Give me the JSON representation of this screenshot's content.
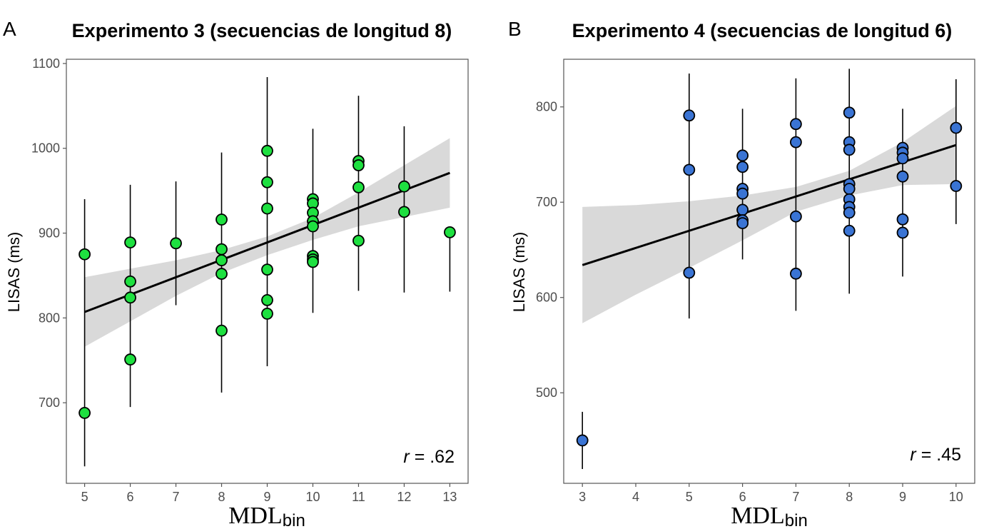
{
  "chart_data": [
    {
      "type": "scatter",
      "panel_letter": "A",
      "title": "Experimento 3 (secuencias de longitud 8)",
      "xlabel": "MDL",
      "xlabel_sub": "bin",
      "ylabel": "LISAS (ms)",
      "xlim": [
        4.6,
        13.4
      ],
      "ylim": [
        605,
        1105
      ],
      "xticks": [
        5,
        6,
        7,
        8,
        9,
        10,
        11,
        12,
        13
      ],
      "yticks": [
        700,
        800,
        900,
        1000,
        1100
      ],
      "point_color": "#1ee040",
      "annotation": {
        "r_label": "r",
        "r_value": " = .62"
      },
      "regression": {
        "x": [
          5,
          13
        ],
        "y": [
          807,
          971
        ]
      },
      "confidence_band": {
        "x": [
          5,
          6,
          7,
          8,
          9,
          10,
          11,
          12,
          13
        ],
        "upper": [
          848,
          858,
          868,
          880,
          896,
          918,
          948,
          980,
          1012
        ],
        "lower": [
          766,
          796,
          826,
          853,
          874,
          892,
          908,
          919,
          930
        ]
      },
      "error_bars": [
        {
          "x": 5,
          "low": 625,
          "high": 940
        },
        {
          "x": 6,
          "low": 695,
          "high": 957
        },
        {
          "x": 7,
          "low": 815,
          "high": 961
        },
        {
          "x": 8,
          "low": 712,
          "high": 995
        },
        {
          "x": 9,
          "low": 743,
          "high": 1084
        },
        {
          "x": 10,
          "low": 806,
          "high": 1023
        },
        {
          "x": 11,
          "low": 832,
          "high": 1062
        },
        {
          "x": 12,
          "low": 830,
          "high": 1026
        },
        {
          "x": 13,
          "low": 831,
          "high": 901
        }
      ],
      "points": [
        {
          "x": 5,
          "y": 875
        },
        {
          "x": 5,
          "y": 688
        },
        {
          "x": 6,
          "y": 889
        },
        {
          "x": 6,
          "y": 843
        },
        {
          "x": 6,
          "y": 824
        },
        {
          "x": 6,
          "y": 751
        },
        {
          "x": 7,
          "y": 888
        },
        {
          "x": 8,
          "y": 916
        },
        {
          "x": 8,
          "y": 881
        },
        {
          "x": 8,
          "y": 868
        },
        {
          "x": 8,
          "y": 852
        },
        {
          "x": 8,
          "y": 785
        },
        {
          "x": 9,
          "y": 997
        },
        {
          "x": 9,
          "y": 960
        },
        {
          "x": 9,
          "y": 929
        },
        {
          "x": 9,
          "y": 857
        },
        {
          "x": 9,
          "y": 821
        },
        {
          "x": 9,
          "y": 805
        },
        {
          "x": 10,
          "y": 940
        },
        {
          "x": 10,
          "y": 935
        },
        {
          "x": 10,
          "y": 924
        },
        {
          "x": 10,
          "y": 914
        },
        {
          "x": 10,
          "y": 908
        },
        {
          "x": 10,
          "y": 873
        },
        {
          "x": 10,
          "y": 869
        },
        {
          "x": 10,
          "y": 866
        },
        {
          "x": 11,
          "y": 985
        },
        {
          "x": 11,
          "y": 980
        },
        {
          "x": 11,
          "y": 954
        },
        {
          "x": 11,
          "y": 891
        },
        {
          "x": 12,
          "y": 955
        },
        {
          "x": 12,
          "y": 925
        },
        {
          "x": 13,
          "y": 901
        }
      ]
    },
    {
      "type": "scatter",
      "panel_letter": "B",
      "title": "Experimento 4 (secuencias de longitud 6)",
      "xlabel": "MDL",
      "xlabel_sub": "bin",
      "ylabel": "LISAS (ms)",
      "xlim": [
        2.65,
        10.35
      ],
      "ylim": [
        405,
        850
      ],
      "xticks": [
        3,
        4,
        5,
        6,
        7,
        8,
        9,
        10
      ],
      "yticks": [
        500,
        600,
        700,
        800
      ],
      "point_color": "#3a74d4",
      "annotation": {
        "r_label": "r",
        "r_value": " = .45"
      },
      "regression": {
        "x": [
          3,
          10
        ],
        "y": [
          634,
          760
        ]
      },
      "confidence_band": {
        "x": [
          3,
          4,
          5,
          6,
          7,
          8,
          9,
          10
        ],
        "upper": [
          695,
          697,
          701,
          707,
          716,
          733,
          763,
          801
        ],
        "lower": [
          573,
          603,
          631,
          660,
          690,
          707,
          718,
          719
        ]
      },
      "error_bars": [
        {
          "x": 3,
          "low": 420,
          "high": 480
        },
        {
          "x": 5,
          "low": 578,
          "high": 835
        },
        {
          "x": 6,
          "low": 640,
          "high": 798
        },
        {
          "x": 7,
          "low": 586,
          "high": 830
        },
        {
          "x": 8,
          "low": 604,
          "high": 840
        },
        {
          "x": 9,
          "low": 622,
          "high": 798
        },
        {
          "x": 10,
          "low": 677,
          "high": 829
        }
      ],
      "points": [
        {
          "x": 3,
          "y": 450
        },
        {
          "x": 5,
          "y": 791
        },
        {
          "x": 5,
          "y": 734
        },
        {
          "x": 5,
          "y": 626
        },
        {
          "x": 6,
          "y": 749
        },
        {
          "x": 6,
          "y": 737
        },
        {
          "x": 6,
          "y": 714
        },
        {
          "x": 6,
          "y": 709
        },
        {
          "x": 6,
          "y": 692
        },
        {
          "x": 6,
          "y": 681
        },
        {
          "x": 6,
          "y": 678
        },
        {
          "x": 7,
          "y": 782
        },
        {
          "x": 7,
          "y": 763
        },
        {
          "x": 7,
          "y": 685
        },
        {
          "x": 7,
          "y": 625
        },
        {
          "x": 8,
          "y": 794
        },
        {
          "x": 8,
          "y": 763
        },
        {
          "x": 8,
          "y": 755
        },
        {
          "x": 8,
          "y": 719
        },
        {
          "x": 8,
          "y": 714
        },
        {
          "x": 8,
          "y": 703
        },
        {
          "x": 8,
          "y": 695
        },
        {
          "x": 8,
          "y": 689
        },
        {
          "x": 8,
          "y": 670
        },
        {
          "x": 9,
          "y": 757
        },
        {
          "x": 9,
          "y": 752
        },
        {
          "x": 9,
          "y": 746
        },
        {
          "x": 9,
          "y": 727
        },
        {
          "x": 9,
          "y": 682
        },
        {
          "x": 9,
          "y": 668
        },
        {
          "x": 10,
          "y": 778
        },
        {
          "x": 10,
          "y": 717
        }
      ]
    }
  ]
}
